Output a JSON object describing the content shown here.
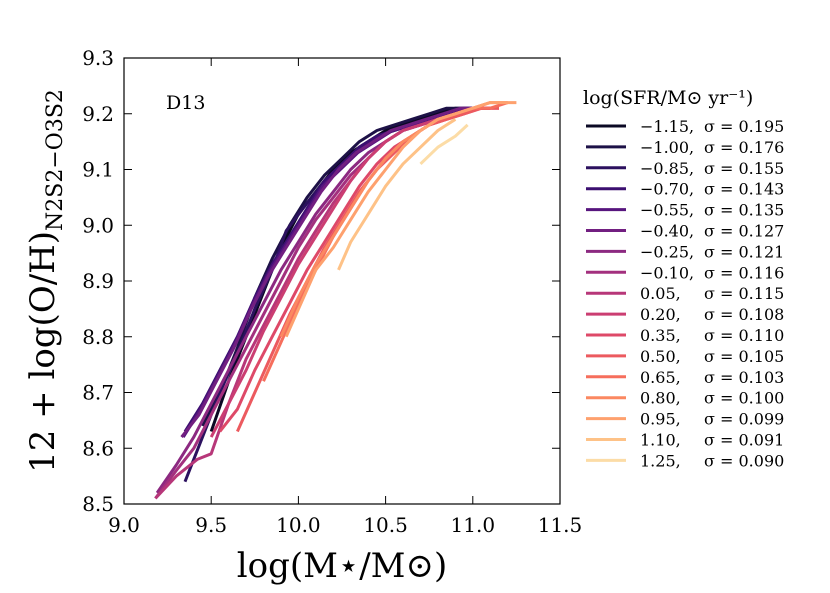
{
  "chart_data": {
    "type": "line",
    "title": "",
    "xlabel": "log(M⋆/M⊙)",
    "ylabel_main": "12 + log(O/H)",
    "ylabel_sub": "N2S2−O3S2",
    "annotation": "D13",
    "xlim": [
      9.0,
      11.5
    ],
    "ylim": [
      8.5,
      9.3
    ],
    "xticks": [
      "9.0",
      "9.5",
      "10.0",
      "10.5",
      "11.0",
      "11.5"
    ],
    "yticks": [
      "8.5",
      "8.6",
      "8.7",
      "8.8",
      "8.9",
      "9.0",
      "9.1",
      "9.2",
      "9.3"
    ],
    "legend_title": "log(SFR/M⊙ yr⁻¹)",
    "legend_position": "outside-right",
    "series": [
      {
        "name": "−1.15, σ = 0.195",
        "sfr": "−1.15,",
        "sigma": "σ = 0.195",
        "color": "#0b0924",
        "x": [
          9.5,
          9.6,
          9.7,
          9.8,
          9.9,
          10.0,
          10.1,
          10.2,
          10.3,
          10.4,
          10.5,
          10.6,
          10.7,
          10.8,
          10.9,
          11.0,
          11.1
        ],
        "y": [
          8.63,
          8.72,
          8.8,
          8.88,
          8.96,
          9.02,
          9.06,
          9.1,
          9.13,
          9.15,
          9.17,
          9.18,
          9.19,
          9.2,
          9.21,
          9.21,
          9.21
        ]
      },
      {
        "name": "−1.00, σ = 0.176",
        "sfr": "−1.00,",
        "sigma": "σ = 0.176",
        "color": "#1d1147",
        "x": [
          9.45,
          9.55,
          9.65,
          9.75,
          9.85,
          9.95,
          10.05,
          10.15,
          10.25,
          10.35,
          10.45,
          10.55,
          10.65,
          10.75,
          10.85,
          10.95,
          11.05
        ],
        "y": [
          8.64,
          8.7,
          8.78,
          8.87,
          8.94,
          9.0,
          9.05,
          9.09,
          9.12,
          9.15,
          9.17,
          9.18,
          9.19,
          9.2,
          9.21,
          9.21,
          9.21
        ]
      },
      {
        "name": "−0.85, σ = 0.155",
        "sfr": "−0.85,",
        "sigma": "σ = 0.155",
        "color": "#2c115f",
        "x": [
          9.35,
          9.45,
          9.55,
          9.65,
          9.75,
          9.85,
          9.93,
          10.05,
          10.15,
          10.25,
          10.35,
          10.45,
          10.55,
          10.65,
          10.75,
          10.85,
          10.95,
          11.05
        ],
        "y": [
          8.54,
          8.62,
          8.7,
          8.77,
          8.85,
          8.92,
          8.99,
          9.04,
          9.08,
          9.11,
          9.14,
          9.16,
          9.17,
          9.18,
          9.19,
          9.2,
          9.21,
          9.21
        ]
      },
      {
        "name": "−0.70, σ = 0.143",
        "sfr": "−0.70,",
        "sigma": "σ = 0.143",
        "color": "#3b0f70",
        "x": [
          9.35,
          9.45,
          9.55,
          9.65,
          9.75,
          9.85,
          9.95,
          10.05,
          10.15,
          10.25,
          10.35,
          10.45,
          10.55,
          10.65,
          10.75,
          10.85,
          10.95,
          11.05
        ],
        "y": [
          8.63,
          8.68,
          8.74,
          8.8,
          8.87,
          8.93,
          8.98,
          9.03,
          9.08,
          9.11,
          9.14,
          9.16,
          9.17,
          9.18,
          9.19,
          9.2,
          9.21,
          9.21
        ]
      },
      {
        "name": "−0.55, σ = 0.135",
        "sfr": "−0.55,",
        "sigma": "σ = 0.135",
        "color": "#57157e",
        "x": [
          9.34,
          9.44,
          9.54,
          9.64,
          9.74,
          9.84,
          9.94,
          10.04,
          10.14,
          10.24,
          10.34,
          10.44,
          10.54,
          10.64,
          10.74,
          10.84,
          10.94,
          11.04
        ],
        "y": [
          8.62,
          8.67,
          8.73,
          8.79,
          8.86,
          8.92,
          8.97,
          9.02,
          9.07,
          9.1,
          9.13,
          9.15,
          9.17,
          9.18,
          9.19,
          9.2,
          9.21,
          9.21
        ]
      },
      {
        "name": "−0.40, σ = 0.127",
        "sfr": "−0.40,",
        "sigma": "σ = 0.127",
        "color": "#721f81",
        "x": [
          9.33,
          9.43,
          9.53,
          9.63,
          9.73,
          9.83,
          9.93,
          10.03,
          10.13,
          10.23,
          10.33,
          10.43,
          10.53,
          10.63,
          10.73,
          10.83,
          10.93,
          11.03
        ],
        "y": [
          8.62,
          8.66,
          8.72,
          8.78,
          8.85,
          8.91,
          8.96,
          9.01,
          9.06,
          9.1,
          9.13,
          9.15,
          9.17,
          9.18,
          9.19,
          9.2,
          9.21,
          9.21
        ]
      },
      {
        "name": "−0.25, σ = 0.121",
        "sfr": "−0.25,",
        "sigma": "σ = 0.121",
        "color": "#8c2981",
        "x": [
          9.19,
          9.3,
          9.4,
          9.5,
          9.6,
          9.7,
          9.8,
          9.9,
          10.0,
          10.1,
          10.2,
          10.3,
          10.4,
          10.5,
          10.6,
          10.7,
          10.8,
          10.9,
          11.0,
          11.1
        ],
        "y": [
          8.52,
          8.57,
          8.62,
          8.68,
          8.74,
          8.8,
          8.86,
          8.92,
          8.97,
          9.02,
          9.06,
          9.1,
          9.13,
          9.15,
          9.17,
          9.18,
          9.19,
          9.2,
          9.21,
          9.21
        ]
      },
      {
        "name": "−0.10, σ = 0.116",
        "sfr": "−0.10,",
        "sigma": "σ = 0.116",
        "color": "#a3307e",
        "x": [
          9.18,
          9.3,
          9.4,
          9.5,
          9.6,
          9.7,
          9.8,
          9.9,
          10.0,
          10.1,
          10.2,
          10.3,
          10.4,
          10.5,
          10.6,
          10.7,
          10.8,
          10.9,
          11.0,
          11.1
        ],
        "y": [
          8.51,
          8.56,
          8.6,
          8.66,
          8.72,
          8.78,
          8.84,
          8.9,
          8.96,
          9.01,
          9.05,
          9.09,
          9.12,
          9.15,
          9.17,
          9.18,
          9.19,
          9.2,
          9.21,
          9.21
        ]
      },
      {
        "name": "0.05, σ = 0.115",
        "sfr": "0.05,",
        "sigma": "σ = 0.115",
        "color": "#b73779",
        "x": [
          9.18,
          9.3,
          9.42,
          9.5,
          9.6,
          9.7,
          9.8,
          9.9,
          10.0,
          10.1,
          10.2,
          10.3,
          10.4,
          10.5,
          10.6,
          10.7,
          10.8,
          10.9,
          11.0,
          11.1
        ],
        "y": [
          8.51,
          8.55,
          8.58,
          8.59,
          8.68,
          8.76,
          8.82,
          8.88,
          8.94,
          8.99,
          9.04,
          9.08,
          9.12,
          9.15,
          9.17,
          9.18,
          9.19,
          9.2,
          9.21,
          9.21
        ]
      },
      {
        "name": "0.20, σ = 0.108",
        "sfr": "0.20,",
        "sigma": "σ = 0.108",
        "color": "#cb3e72",
        "x": [
          9.5,
          9.6,
          9.7,
          9.8,
          9.9,
          10.0,
          10.1,
          10.2,
          10.3,
          10.4,
          10.5,
          10.6,
          10.7,
          10.8,
          10.9,
          11.0,
          11.1
        ],
        "y": [
          8.62,
          8.68,
          8.74,
          8.81,
          8.87,
          8.93,
          8.98,
          9.03,
          9.08,
          9.12,
          9.15,
          9.17,
          9.18,
          9.19,
          9.2,
          9.21,
          9.21
        ]
      },
      {
        "name": "0.35, σ = 0.110",
        "sfr": "0.35,",
        "sigma": "σ = 0.110",
        "color": "#de4968",
        "x": [
          9.55,
          9.65,
          9.75,
          9.85,
          9.95,
          10.05,
          10.15,
          10.25,
          10.35,
          10.45,
          10.55,
          10.65,
          10.75,
          10.85,
          10.95,
          11.05,
          11.15
        ],
        "y": [
          8.63,
          8.67,
          8.74,
          8.8,
          8.86,
          8.92,
          8.97,
          9.02,
          9.07,
          9.11,
          9.14,
          9.16,
          9.18,
          9.19,
          9.2,
          9.21,
          9.21
        ]
      },
      {
        "name": "0.50, σ = 0.105",
        "sfr": "0.50,",
        "sigma": "σ = 0.105",
        "color": "#ec5a5f",
        "x": [
          9.65,
          9.75,
          9.85,
          9.95,
          10.05,
          10.15,
          10.25,
          10.35,
          10.45,
          10.55,
          10.65,
          10.75,
          10.85,
          10.95,
          11.05,
          11.15
        ],
        "y": [
          8.63,
          8.7,
          8.77,
          8.84,
          8.9,
          8.96,
          9.01,
          9.06,
          9.1,
          9.13,
          9.16,
          9.18,
          9.19,
          9.2,
          9.21,
          9.21
        ]
      },
      {
        "name": "0.65, σ = 0.103",
        "sfr": "0.65,",
        "sigma": "σ = 0.103",
        "color": "#f66e5c",
        "x": [
          9.8,
          9.9,
          10.0,
          10.1,
          10.2,
          10.3,
          10.4,
          10.5,
          10.6,
          10.7,
          10.8,
          10.9,
          11.0,
          11.1,
          11.2
        ],
        "y": [
          8.72,
          8.79,
          8.86,
          8.92,
          8.98,
          9.03,
          9.08,
          9.12,
          9.15,
          9.17,
          9.19,
          9.2,
          9.21,
          9.21,
          9.22
        ]
      },
      {
        "name": "0.80, σ = 0.100",
        "sfr": "0.80,",
        "sigma": "σ = 0.100",
        "color": "#fb8861",
        "x": [
          9.9,
          10.0,
          10.1,
          10.2,
          10.3,
          10.4,
          10.5,
          10.6,
          10.7,
          10.8,
          10.9,
          11.0,
          11.1,
          11.2
        ],
        "y": [
          8.8,
          8.87,
          8.93,
          8.98,
          9.03,
          9.08,
          9.12,
          9.15,
          9.17,
          9.19,
          9.2,
          9.21,
          9.22,
          9.22
        ]
      },
      {
        "name": "0.95, σ = 0.099",
        "sfr": "0.95,",
        "sigma": "σ = 0.099",
        "color": "#fea16e",
        "x": [
          9.93,
          10.1,
          10.2,
          10.3,
          10.4,
          10.5,
          10.6,
          10.7,
          10.8,
          10.9,
          11.0,
          11.1,
          11.2,
          11.25
        ],
        "y": [
          8.8,
          8.92,
          8.96,
          9.01,
          9.06,
          9.1,
          9.14,
          9.17,
          9.19,
          9.2,
          9.21,
          9.22,
          9.22,
          9.22
        ]
      },
      {
        "name": "1.10, σ = 0.091",
        "sfr": "1.10,",
        "sigma": "σ = 0.091",
        "color": "#fec287",
        "x": [
          10.23,
          10.3,
          10.4,
          10.5,
          10.6,
          10.7,
          10.8,
          10.9
        ],
        "y": [
          8.92,
          8.97,
          9.02,
          9.07,
          9.11,
          9.14,
          9.17,
          9.19
        ]
      },
      {
        "name": "1.25, σ = 0.090",
        "sfr": "1.25,",
        "sigma": "σ = 0.090",
        "color": "#fcdca6",
        "x": [
          10.7,
          10.8,
          10.9,
          10.97
        ],
        "y": [
          9.11,
          9.14,
          9.16,
          9.18
        ]
      }
    ]
  }
}
